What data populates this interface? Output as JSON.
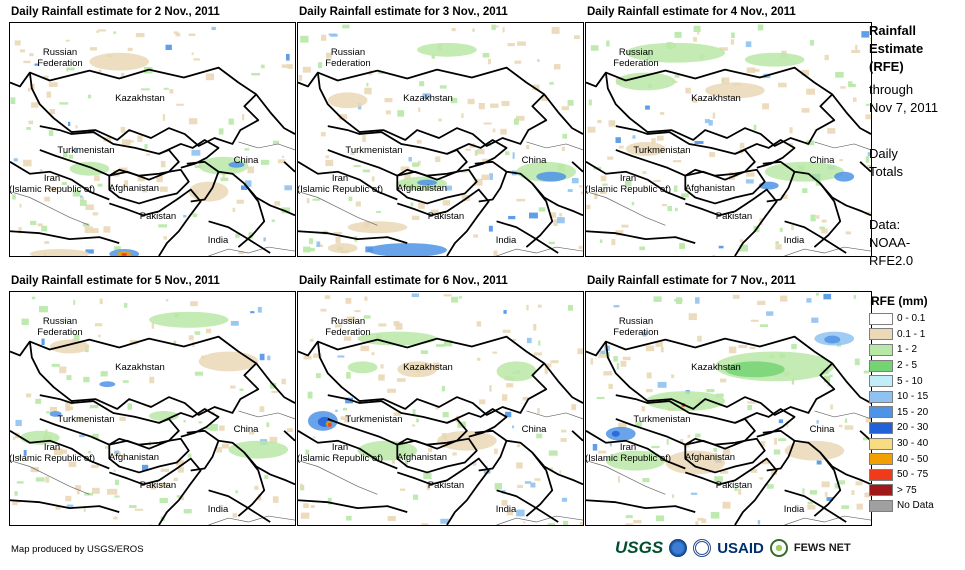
{
  "panels": [
    {
      "title": "Daily Rainfall estimate for 2 Nov., 2011"
    },
    {
      "title": "Daily Rainfall estimate for 3 Nov., 2011"
    },
    {
      "title": "Daily Rainfall estimate for 4 Nov., 2011"
    },
    {
      "title": "Daily Rainfall estimate for 5 Nov., 2011"
    },
    {
      "title": "Daily Rainfall estimate for 6 Nov., 2011"
    },
    {
      "title": "Daily Rainfall estimate for 7 Nov., 2011"
    }
  ],
  "map_labels": {
    "russia": "Russian\nFederation",
    "kazakhstan": "Kazakhstan",
    "turkmenistan": "Turkmenistan",
    "china": "China",
    "iran": "Iran\n(Islamic Republic of)",
    "afghanistan": "Afghanistan",
    "pakistan": "Pakistan",
    "india": "India"
  },
  "sidebar": {
    "heading1": "Rainfall",
    "heading2": "Estimate",
    "heading3": "(RFE)",
    "through1": "through",
    "through2": "Nov 7, 2011",
    "daily1": "Daily",
    "daily2": "Totals",
    "data1": "Data:",
    "data2": "NOAA-",
    "data3": "RFE2.0"
  },
  "legend": {
    "title": "RFE (mm)",
    "items": [
      {
        "label": "0 - 0.1",
        "color": "#ffffff"
      },
      {
        "label": "0.1 - 1",
        "color": "#ead8b6"
      },
      {
        "label": "1 - 2",
        "color": "#b8e8a6"
      },
      {
        "label": "2 - 5",
        "color": "#74d474"
      },
      {
        "label": "5 - 10",
        "color": "#bfeef8"
      },
      {
        "label": "10 - 15",
        "color": "#8fc2f0"
      },
      {
        "label": "15 - 20",
        "color": "#4f93e6"
      },
      {
        "label": "20 - 30",
        "color": "#2162d8"
      },
      {
        "label": "30 - 40",
        "color": "#f8dc82"
      },
      {
        "label": "40 - 50",
        "color": "#f2a000"
      },
      {
        "label": "50 - 75",
        "color": "#ef3b1a"
      },
      {
        "label": "> 75",
        "color": "#a01818"
      },
      {
        "label": "No Data",
        "color": "#a0a0a0"
      }
    ]
  },
  "footer": "Map produced by USGS/EROS",
  "logos": {
    "usgs": "USGS",
    "usaid": "USAID",
    "fews": "FEWS NET"
  }
}
